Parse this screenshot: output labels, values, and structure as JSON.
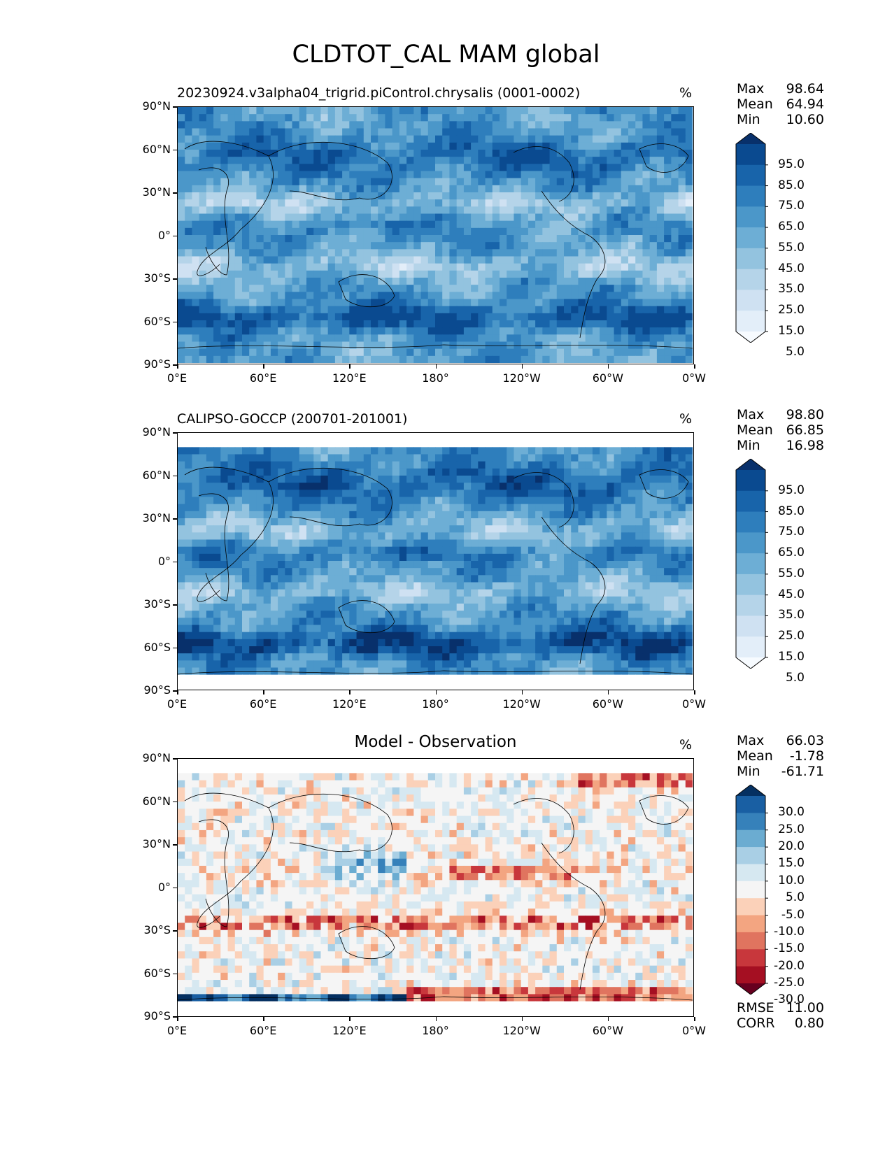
{
  "figure": {
    "title": "CLDTOT_CAL MAM global"
  },
  "panels": [
    {
      "title": "20230924.v3alpha04_trigrid.piControl.chrysalis (0001-0002)",
      "units": "%",
      "stats": {
        "max_label": "Max",
        "max": "98.64",
        "mean_label": "Mean",
        "mean": "64.94",
        "min_label": "Min",
        "min": "10.60"
      },
      "colorbar": {
        "colormap": "Blues",
        "ticks": [
          "95.0",
          "85.0",
          "75.0",
          "65.0",
          "55.0",
          "45.0",
          "35.0",
          "25.0",
          "15.0",
          "5.0"
        ]
      }
    },
    {
      "title": "CALIPSO-GOCCP (200701-201001)",
      "units": "%",
      "stats": {
        "max_label": "Max",
        "max": "98.80",
        "mean_label": "Mean",
        "mean": "66.85",
        "min_label": "Min",
        "min": "16.98"
      },
      "colorbar": {
        "colormap": "Blues",
        "ticks": [
          "95.0",
          "85.0",
          "75.0",
          "65.0",
          "55.0",
          "45.0",
          "35.0",
          "25.0",
          "15.0",
          "5.0"
        ]
      }
    },
    {
      "title": "Model - Observation",
      "units": "%",
      "stats": {
        "max_label": "Max",
        "max": "66.03",
        "mean_label": "Mean",
        "mean": "-1.78",
        "min_label": "Min",
        "min": "-61.71"
      },
      "colorbar": {
        "colormap": "RdBu",
        "ticks": [
          "30.0",
          "25.0",
          "20.0",
          "15.0",
          "10.0",
          "5.0",
          "-5.0",
          "-10.0",
          "-15.0",
          "-20.0",
          "-25.0",
          "-30.0"
        ]
      },
      "metrics": {
        "rmse_label": "RMSE",
        "rmse": "11.00",
        "corr_label": "CORR",
        "corr": "0.80"
      }
    }
  ],
  "axes": {
    "x_ticks": [
      "0°E",
      "60°E",
      "120°E",
      "180°",
      "120°W",
      "60°W",
      "0°W"
    ],
    "y_ticks": [
      "90°N",
      "60°N",
      "30°N",
      "0°",
      "30°S",
      "60°S",
      "90°S"
    ]
  },
  "colors": {
    "blues": [
      "#f7fbff",
      "#e3eef9",
      "#cfe1f2",
      "#b5d4e9",
      "#93c3df",
      "#6daed5",
      "#4b97c9",
      "#2e7ebc",
      "#1864aa",
      "#0a4a90",
      "#08306b"
    ],
    "rdbu": [
      "#67001f",
      "#a50f22",
      "#c8373c",
      "#e0745f",
      "#f3a581",
      "#fbd1b9",
      "#f5f5f5",
      "#d6e8f1",
      "#a9cfe5",
      "#6bacd1",
      "#3681ba",
      "#195fa3",
      "#053061"
    ]
  },
  "chart_data": {
    "type": "heatmap",
    "title": "CLDTOT_CAL MAM global",
    "panels": [
      {
        "name": "20230924.v3alpha04_trigrid.piControl.chrysalis (0001-0002)",
        "max": 98.64,
        "mean": 64.94,
        "min": 10.6,
        "units": "%",
        "levels": [
          5,
          15,
          25,
          35,
          45,
          55,
          65,
          75,
          85,
          95
        ]
      },
      {
        "name": "CALIPSO-GOCCP (200701-201001)",
        "max": 98.8,
        "mean": 66.85,
        "min": 16.98,
        "units": "%",
        "levels": [
          5,
          15,
          25,
          35,
          45,
          55,
          65,
          75,
          85,
          95
        ]
      },
      {
        "name": "Model - Observation",
        "max": 66.03,
        "mean": -1.78,
        "min": -61.71,
        "units": "%",
        "levels": [
          -30,
          -25,
          -20,
          -15,
          -10,
          -5,
          5,
          10,
          15,
          20,
          25,
          30
        ],
        "rmse": 11.0,
        "corr": 0.8
      }
    ],
    "xlim": [
      0,
      360
    ],
    "ylim": [
      -90,
      90
    ]
  }
}
